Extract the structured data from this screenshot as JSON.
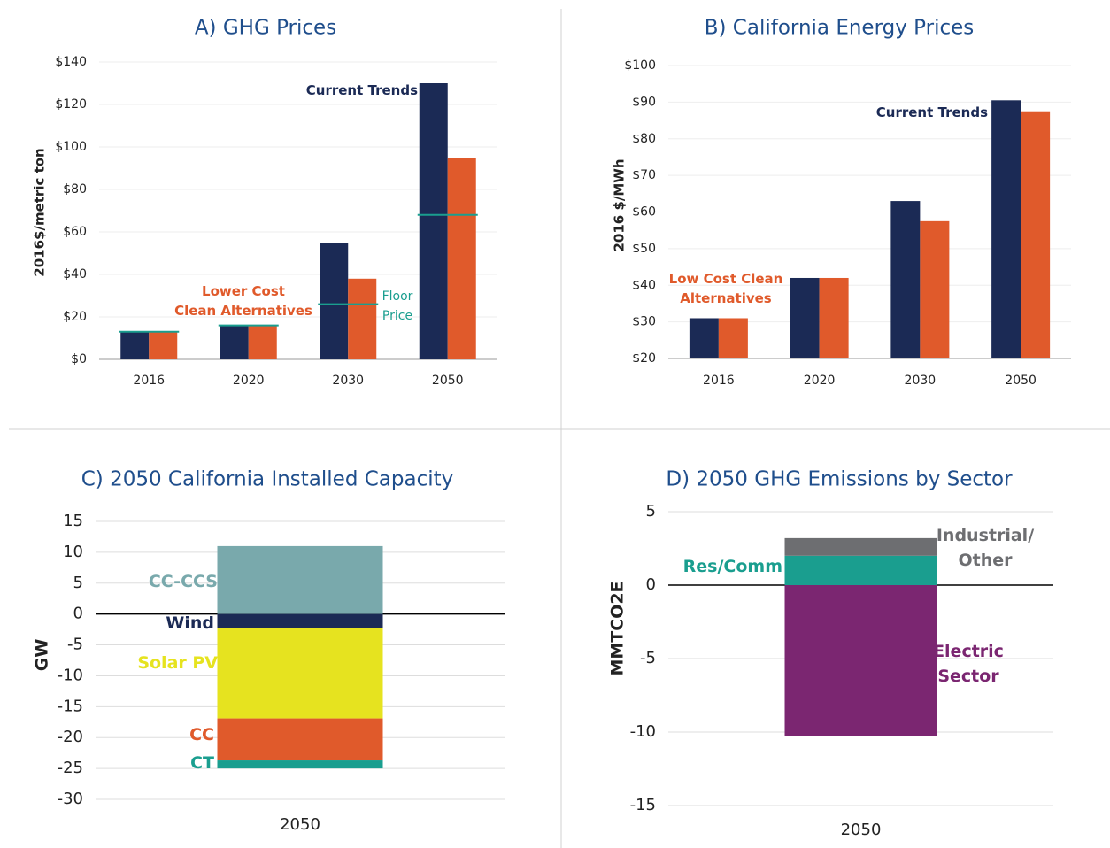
{
  "chart_data": [
    {
      "type": "bar",
      "title": "A) GHG Prices",
      "ylabel": "2016$/metric ton",
      "categories": [
        "2016",
        "2020",
        "2030",
        "2050"
      ],
      "series": [
        {
          "name": "Current Trends",
          "color": "#1b2a55",
          "values": [
            13,
            16,
            55,
            130
          ]
        },
        {
          "name": "Lower Cost\nClean Alternatives",
          "color": "#e05a2b",
          "values": [
            13,
            16,
            38,
            95
          ]
        }
      ],
      "floor": {
        "name": "Floor\nPrice",
        "color": "#1a9e8f",
        "values": [
          13,
          16,
          26,
          68
        ]
      },
      "ylim": [
        0,
        140
      ],
      "yticks": [
        {
          "value": 0,
          "label": "$0"
        },
        {
          "value": 20,
          "label": "$20"
        },
        {
          "value": 40,
          "label": "$40"
        },
        {
          "value": 60,
          "label": "$60"
        },
        {
          "value": 80,
          "label": "$80"
        },
        {
          "value": 100,
          "label": "$100"
        },
        {
          "value": 120,
          "label": "$120"
        },
        {
          "value": 140,
          "label": "$140"
        }
      ],
      "grid": true
    },
    {
      "type": "bar",
      "title": "B) California Energy Prices",
      "ylabel": "2016 $/MWh",
      "categories": [
        "2016",
        "2020",
        "2030",
        "2050"
      ],
      "series": [
        {
          "name": "Current Trends",
          "color": "#1b2a55",
          "values": [
            31,
            42,
            63,
            90.5
          ]
        },
        {
          "name": "Low Cost Clean\nAlternatives",
          "color": "#e05a2b",
          "values": [
            31,
            42,
            57.5,
            87.5
          ]
        }
      ],
      "ylim": [
        20,
        100
      ],
      "yticks": [
        {
          "value": 20,
          "label": "$20"
        },
        {
          "value": 30,
          "label": "$30"
        },
        {
          "value": 40,
          "label": "$40"
        },
        {
          "value": 50,
          "label": "$50"
        },
        {
          "value": 60,
          "label": "$60"
        },
        {
          "value": 70,
          "label": "$70"
        },
        {
          "value": 80,
          "label": "$80"
        },
        {
          "value": 90,
          "label": "$90"
        },
        {
          "value": 100,
          "label": "$100"
        }
      ],
      "grid": true
    },
    {
      "type": "stacked_bar",
      "title": "C) 2050 California Installed Capacity",
      "ylabel": "GW",
      "categories": [
        "2050"
      ],
      "series": [
        {
          "name": "CC-CCS",
          "color": "#79a9ac",
          "values": [
            11
          ]
        },
        {
          "name": "Wind",
          "color": "#1b2a55",
          "values": [
            -2.2
          ]
        },
        {
          "name": "Solar PV",
          "color": "#e6e31f",
          "values": [
            -14.7
          ]
        },
        {
          "name": "CC",
          "color": "#e05a2b",
          "values": [
            -6.8
          ]
        },
        {
          "name": "CT",
          "color": "#1a9e8f",
          "values": [
            -1.3
          ]
        }
      ],
      "ylim": [
        -30,
        15
      ],
      "yticks": [
        -30,
        -25,
        -20,
        -15,
        -10,
        -5,
        0,
        5,
        10,
        15
      ],
      "grid": true
    },
    {
      "type": "stacked_bar",
      "title": "D) 2050 GHG Emissions by Sector",
      "ylabel": "MMTCO2E",
      "categories": [
        "2050"
      ],
      "series": [
        {
          "name": "Electric\nSector",
          "color": "#7b2671",
          "values": [
            -10.3
          ]
        },
        {
          "name": "Res/Comm",
          "color": "#1a9e8f",
          "values": [
            2.0
          ]
        },
        {
          "name": "Industrial/\nOther",
          "color": "#6d6e71",
          "values": [
            1.2
          ]
        }
      ],
      "ylim": [
        -15,
        5
      ],
      "yticks": [
        -15,
        -10,
        -5,
        0,
        5
      ],
      "grid": true
    }
  ]
}
